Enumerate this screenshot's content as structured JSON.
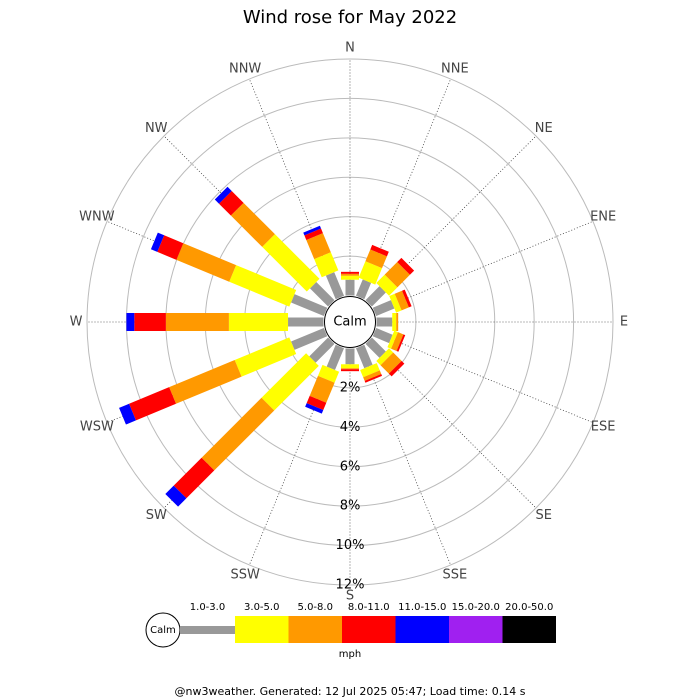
{
  "chart_data": {
    "type": "windrose",
    "title": "Wind rose for May 2022",
    "calm_label": "Calm",
    "unit_label": "mph",
    "footer": "@nw3weather. Generated: 12 Jul 2025 05:47; Load time: 0.14 s",
    "categories": [
      "N",
      "NNE",
      "NE",
      "ENE",
      "E",
      "ESE",
      "SE",
      "SSE",
      "S",
      "SSW",
      "SW",
      "WSW",
      "W",
      "WNW",
      "NW",
      "NNW"
    ],
    "rlim": [
      0,
      12
    ],
    "rticks": [
      {
        "value": 2,
        "label": "2%"
      },
      {
        "value": 4,
        "label": "4%"
      },
      {
        "value": 6,
        "label": "6%"
      },
      {
        "value": 8,
        "label": "8%"
      },
      {
        "value": 10,
        "label": "10%"
      },
      {
        "value": 12,
        "label": "12%"
      }
    ],
    "series": [
      {
        "name": "1.0-3.0",
        "color": "#999999",
        "values": [
          0.8,
          0.9,
          1.0,
          1.0,
          0.8,
          0.9,
          1.0,
          1.1,
          0.8,
          1.2,
          1.35,
          1.8,
          1.8,
          1.8,
          1.3,
          1.3
        ]
      },
      {
        "name": "3.0-5.0",
        "color": "#ffff00",
        "values": [
          0.2,
          0.9,
          0.6,
          0.3,
          0.2,
          0.2,
          0.3,
          0.4,
          0.2,
          0.6,
          3.2,
          3.0,
          3.0,
          3.3,
          3.2,
          1.0
        ]
      },
      {
        "name": "5.0-8.0",
        "color": "#ff9900",
        "values": [
          0.1,
          0.65,
          0.9,
          0.4,
          0.1,
          0.3,
          0.6,
          0.2,
          0.05,
          1.1,
          4.3,
          3.6,
          3.2,
          2.9,
          2.25,
          1.05
        ]
      },
      {
        "name": "8.0-11.0",
        "color": "#ff0000",
        "values": [
          0.1,
          0.25,
          0.3,
          0.15,
          0,
          0.1,
          0.2,
          0.1,
          0.1,
          0.4,
          2.0,
          2.2,
          1.6,
          1.05,
          0.85,
          0.25
        ]
      },
      {
        "name": "11.0-15.0",
        "color": "#0000ff",
        "values": [
          0,
          0,
          0,
          0,
          0,
          0,
          0,
          0,
          0,
          0.2,
          0.6,
          0.55,
          0.4,
          0.35,
          0.3,
          0.15
        ]
      },
      {
        "name": "15.0-20.0",
        "color": "#a020f0",
        "values": [
          0,
          0,
          0,
          0,
          0,
          0,
          0,
          0,
          0,
          0,
          0,
          0,
          0,
          0,
          0,
          0
        ]
      },
      {
        "name": "20.0-50.0",
        "color": "#000000",
        "values": [
          0,
          0,
          0,
          0,
          0,
          0,
          0,
          0,
          0,
          0,
          0,
          0,
          0,
          0,
          0,
          0
        ]
      }
    ]
  }
}
